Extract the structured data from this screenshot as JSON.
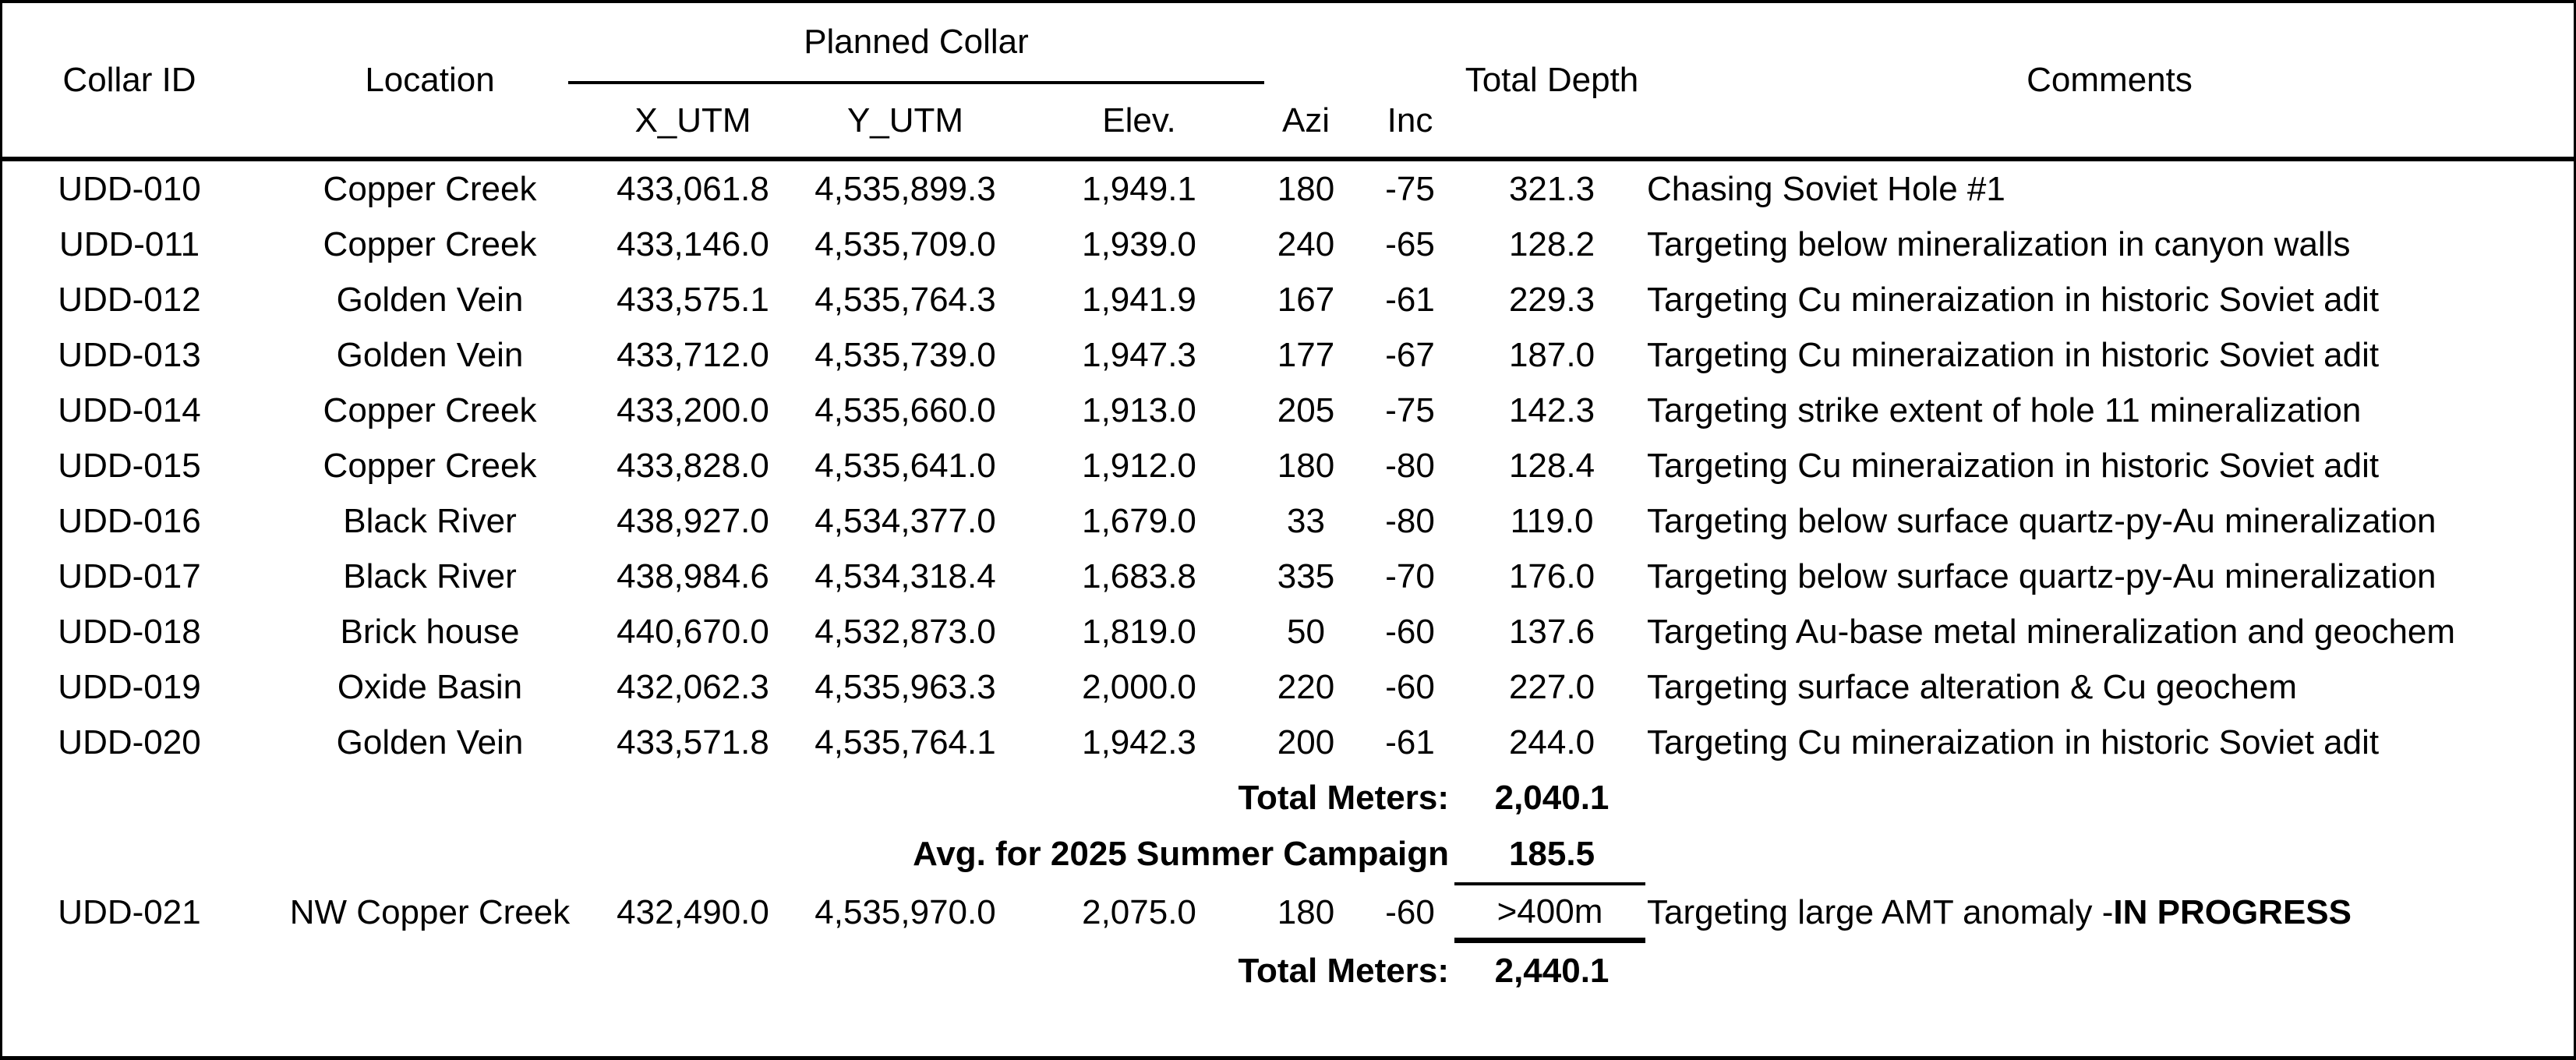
{
  "table": {
    "header": {
      "collar_id": "Collar ID",
      "location": "Location",
      "planned_collar": "Planned Collar",
      "x_utm": "X_UTM",
      "y_utm": "Y_UTM",
      "elev": "Elev.",
      "azi": "Azi",
      "inc": "Inc",
      "total_depth": "Total Depth",
      "comments": "Comments"
    },
    "rows": [
      {
        "collar_id": "UDD-010",
        "location": "Copper Creek",
        "x_utm": "433,061.8",
        "y_utm": "4,535,899.3",
        "elev": "1,949.1",
        "azi": "180",
        "inc": "-75",
        "total_depth": "321.3",
        "comments": "Chasing Soviet Hole #1"
      },
      {
        "collar_id": "UDD-011",
        "location": "Copper Creek",
        "x_utm": "433,146.0",
        "y_utm": "4,535,709.0",
        "elev": "1,939.0",
        "azi": "240",
        "inc": "-65",
        "total_depth": "128.2",
        "comments": "Targeting below mineralization in canyon walls"
      },
      {
        "collar_id": "UDD-012",
        "location": "Golden Vein",
        "x_utm": "433,575.1",
        "y_utm": "4,535,764.3",
        "elev": "1,941.9",
        "azi": "167",
        "inc": "-61",
        "total_depth": "229.3",
        "comments": "Targeting Cu mineraization in historic Soviet adit"
      },
      {
        "collar_id": "UDD-013",
        "location": "Golden Vein",
        "x_utm": "433,712.0",
        "y_utm": "4,535,739.0",
        "elev": "1,947.3",
        "azi": "177",
        "inc": "-67",
        "total_depth": "187.0",
        "comments": "Targeting Cu mineraization in historic Soviet adit"
      },
      {
        "collar_id": "UDD-014",
        "location": "Copper Creek",
        "x_utm": "433,200.0",
        "y_utm": "4,535,660.0",
        "elev": "1,913.0",
        "azi": "205",
        "inc": "-75",
        "total_depth": "142.3",
        "comments": "Targeting strike extent of hole 11 mineralization"
      },
      {
        "collar_id": "UDD-015",
        "location": "Copper Creek",
        "x_utm": "433,828.0",
        "y_utm": "4,535,641.0",
        "elev": "1,912.0",
        "azi": "180",
        "inc": "-80",
        "total_depth": "128.4",
        "comments": "Targeting Cu mineraization in historic Soviet adit"
      },
      {
        "collar_id": "UDD-016",
        "location": "Black River",
        "x_utm": "438,927.0",
        "y_utm": "4,534,377.0",
        "elev": "1,679.0",
        "azi": "33",
        "inc": "-80",
        "total_depth": "119.0",
        "comments": "Targeting below surface quartz-py-Au mineralization"
      },
      {
        "collar_id": "UDD-017",
        "location": "Black River",
        "x_utm": "438,984.6",
        "y_utm": "4,534,318.4",
        "elev": "1,683.8",
        "azi": "335",
        "inc": "-70",
        "total_depth": "176.0",
        "comments": "Targeting below surface quartz-py-Au mineralization"
      },
      {
        "collar_id": "UDD-018",
        "location": "Brick house",
        "x_utm": "440,670.0",
        "y_utm": "4,532,873.0",
        "elev": "1,819.0",
        "azi": "50",
        "inc": "-60",
        "total_depth": "137.6",
        "comments": "Targeting Au-base metal mineralization and geochem"
      },
      {
        "collar_id": "UDD-019",
        "location": "Oxide Basin",
        "x_utm": "432,062.3",
        "y_utm": "4,535,963.3",
        "elev": "2,000.0",
        "azi": "220",
        "inc": "-60",
        "total_depth": "227.0",
        "comments": "Targeting surface alteration & Cu geochem"
      },
      {
        "collar_id": "UDD-020",
        "location": "Golden Vein",
        "x_utm": "433,571.8",
        "y_utm": "4,535,764.1",
        "elev": "1,942.3",
        "azi": "200",
        "inc": "-61",
        "total_depth": "244.0",
        "comments": "Targeting Cu mineraization in historic Soviet adit"
      }
    ],
    "totals": {
      "campaign_total_label": "Total Meters:",
      "campaign_total_value": "2,040.1",
      "avg_label": "Avg. for 2025 Summer Campaign",
      "avg_value": "185.5",
      "grand_total_label": "Total Meters:",
      "grand_total_value": "2,440.1"
    },
    "in_progress_row": {
      "collar_id": "UDD-021",
      "location": "NW Copper Creek",
      "x_utm": "432,490.0",
      "y_utm": "4,535,970.0",
      "elev": "2,075.0",
      "azi": "180",
      "inc": "-60",
      "total_depth": ">400m",
      "comment_main": "Targeting large AMT anomaly - ",
      "comment_bold": "IN PROGRESS"
    },
    "colors": {
      "text": "#000000",
      "background": "#ffffff",
      "border": "#000000"
    }
  }
}
